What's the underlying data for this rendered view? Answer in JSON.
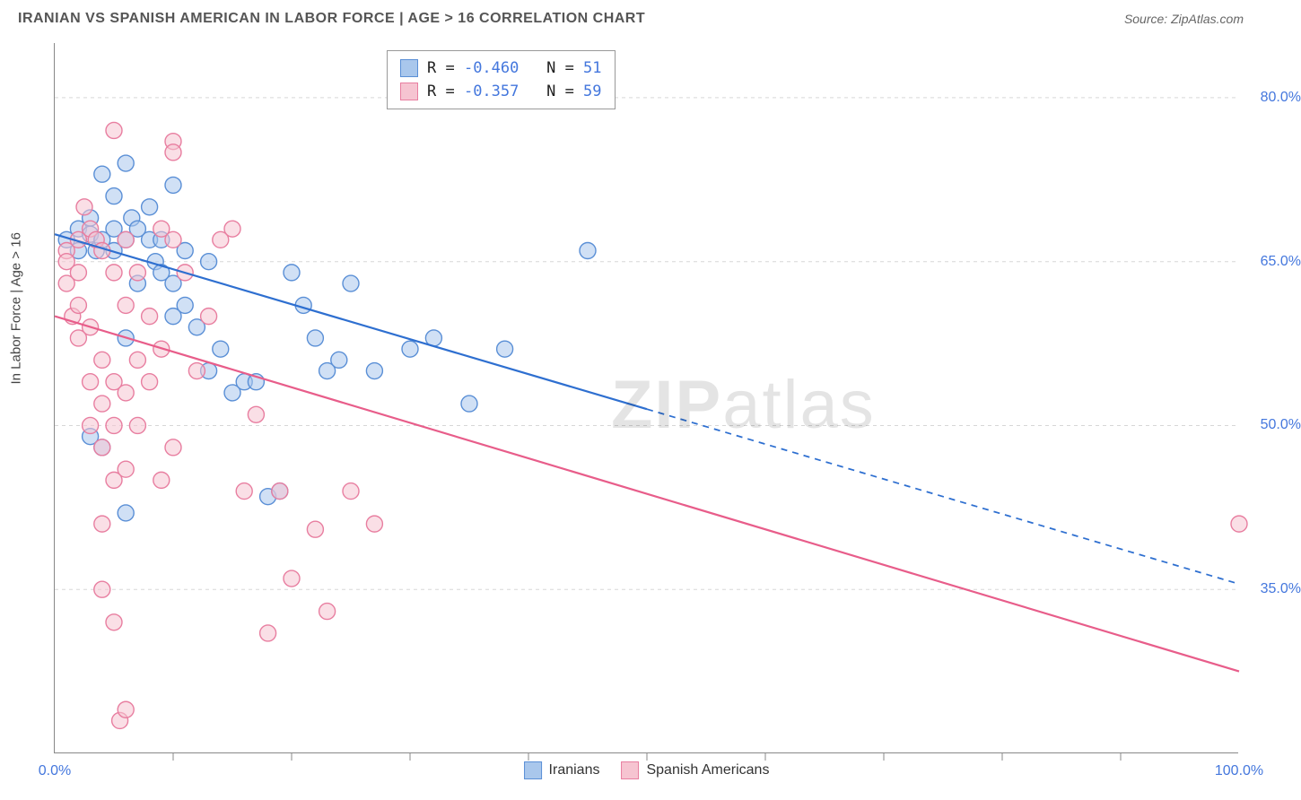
{
  "title": "IRANIAN VS SPANISH AMERICAN IN LABOR FORCE | AGE > 16 CORRELATION CHART",
  "source": "Source: ZipAtlas.com",
  "ylabel": "In Labor Force | Age > 16",
  "watermark_a": "ZIP",
  "watermark_b": "atlas",
  "chart": {
    "type": "scatter-with-trendlines",
    "background_color": "#ffffff",
    "grid_color": "#d7d7d7",
    "axis_color": "#888888",
    "xlim": [
      0,
      100
    ],
    "ylim": [
      20,
      85
    ],
    "y_ticks": [
      35.0,
      50.0,
      65.0,
      80.0
    ],
    "y_tick_labels": [
      "35.0%",
      "50.0%",
      "65.0%",
      "80.0%"
    ],
    "x_tick_lines": [
      10,
      20,
      30,
      40,
      50,
      60,
      70,
      80,
      90
    ],
    "x_labels": [
      {
        "x": 0,
        "text": "0.0%"
      },
      {
        "x": 100,
        "text": "100.0%"
      }
    ],
    "tick_label_color": "#4477dd",
    "marker_radius": 9,
    "marker_opacity": 0.55,
    "series": [
      {
        "name": "Iranians",
        "color_fill": "#a9c7ec",
        "color_stroke": "#5a8fd6",
        "R": "-0.460",
        "N": "51",
        "trend": {
          "x1": 0,
          "y1": 67.5,
          "x2": 50,
          "y2": 51.5,
          "dash_x2": 100,
          "dash_y2": 35.5,
          "color": "#2e6fd0",
          "width": 2.2
        },
        "points": [
          [
            1,
            67
          ],
          [
            2,
            68
          ],
          [
            2,
            66
          ],
          [
            3,
            67.5
          ],
          [
            3,
            69
          ],
          [
            3.5,
            66
          ],
          [
            4,
            67
          ],
          [
            4,
            73
          ],
          [
            5,
            68
          ],
          [
            5,
            66
          ],
          [
            5,
            71
          ],
          [
            6,
            74
          ],
          [
            6,
            67
          ],
          [
            6.5,
            69
          ],
          [
            7,
            68
          ],
          [
            7,
            63
          ],
          [
            8,
            67
          ],
          [
            8,
            70
          ],
          [
            8.5,
            65
          ],
          [
            9,
            64
          ],
          [
            9,
            67
          ],
          [
            10,
            72
          ],
          [
            10,
            63
          ],
          [
            10,
            60
          ],
          [
            11,
            66
          ],
          [
            11,
            61
          ],
          [
            12,
            59
          ],
          [
            13,
            65
          ],
          [
            13,
            55
          ],
          [
            14,
            57
          ],
          [
            15,
            53
          ],
          [
            16,
            54
          ],
          [
            17,
            54
          ],
          [
            18,
            43.5
          ],
          [
            19,
            44
          ],
          [
            20,
            64
          ],
          [
            21,
            61
          ],
          [
            22,
            58
          ],
          [
            23,
            55
          ],
          [
            24,
            56
          ],
          [
            25,
            63
          ],
          [
            27,
            55
          ],
          [
            30,
            57
          ],
          [
            32,
            58
          ],
          [
            35,
            52
          ],
          [
            38,
            57
          ],
          [
            45,
            66
          ],
          [
            3,
            49
          ],
          [
            4,
            48
          ],
          [
            6,
            42
          ],
          [
            6,
            58
          ]
        ]
      },
      {
        "name": "Spanish Americans",
        "color_fill": "#f6c4d1",
        "color_stroke": "#e87ea0",
        "R": "-0.357",
        "N": "59",
        "trend": {
          "x1": 0,
          "y1": 60,
          "x2": 100,
          "y2": 27.5,
          "color": "#e85d8a",
          "width": 2.2
        },
        "points": [
          [
            1,
            66
          ],
          [
            1,
            65
          ],
          [
            1,
            63
          ],
          [
            1.5,
            60
          ],
          [
            2,
            67
          ],
          [
            2,
            64
          ],
          [
            2,
            61
          ],
          [
            2,
            58
          ],
          [
            2.5,
            70
          ],
          [
            3,
            68
          ],
          [
            3,
            59
          ],
          [
            3,
            54
          ],
          [
            3,
            50
          ],
          [
            3.5,
            67
          ],
          [
            4,
            66
          ],
          [
            4,
            56
          ],
          [
            4,
            52
          ],
          [
            4,
            48
          ],
          [
            4,
            41
          ],
          [
            4,
            35
          ],
          [
            5,
            64
          ],
          [
            5,
            77
          ],
          [
            5,
            54
          ],
          [
            5,
            50
          ],
          [
            5,
            45
          ],
          [
            5,
            32
          ],
          [
            5.5,
            23
          ],
          [
            6,
            67
          ],
          [
            6,
            61
          ],
          [
            6,
            53
          ],
          [
            6,
            46
          ],
          [
            6,
            24
          ],
          [
            7,
            64
          ],
          [
            7,
            56
          ],
          [
            7,
            50
          ],
          [
            8,
            60
          ],
          [
            8,
            54
          ],
          [
            9,
            68
          ],
          [
            9,
            57
          ],
          [
            9,
            45
          ],
          [
            10,
            76
          ],
          [
            10,
            75
          ],
          [
            10,
            67
          ],
          [
            10,
            48
          ],
          [
            11,
            64
          ],
          [
            12,
            55
          ],
          [
            13,
            60
          ],
          [
            14,
            67
          ],
          [
            15,
            68
          ],
          [
            16,
            44
          ],
          [
            17,
            51
          ],
          [
            18,
            31
          ],
          [
            19,
            44
          ],
          [
            20,
            36
          ],
          [
            22,
            40.5
          ],
          [
            23,
            33
          ],
          [
            25,
            44
          ],
          [
            27,
            41
          ],
          [
            100,
            41
          ]
        ]
      }
    ]
  },
  "bottom_legend": [
    {
      "label": "Iranians",
      "fill": "#a9c7ec",
      "stroke": "#5a8fd6"
    },
    {
      "label": "Spanish Americans",
      "fill": "#f6c4d1",
      "stroke": "#e87ea0"
    }
  ],
  "legend_top": {
    "r_label": "R =",
    "n_label": "N ="
  }
}
